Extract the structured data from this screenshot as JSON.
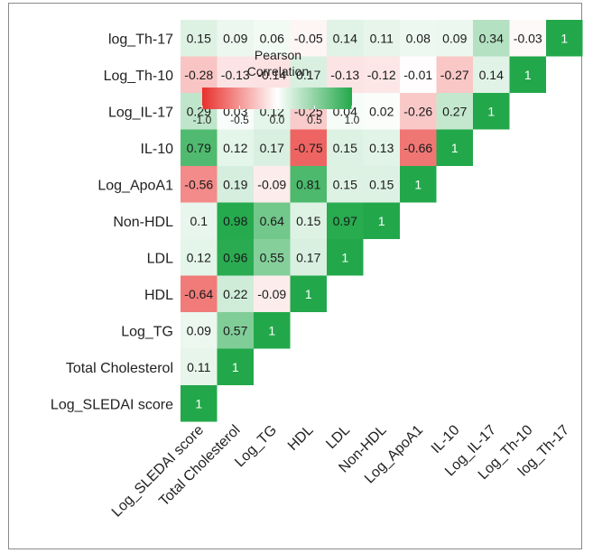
{
  "chart_data": {
    "type": "heatmap",
    "variables": [
      "Log_SLEDAI score",
      "Total Cholesterol",
      "Log_TG",
      "HDL",
      "LDL",
      "Non-HDL",
      "Log_ApoA1",
      "IL-10",
      "Log_IL-17",
      "Log_Th-10",
      "log_Th-17"
    ],
    "row_labels": [
      "log_Th-17",
      "Log_Th-10",
      "Log_IL-17",
      "IL-10",
      "Log_ApoA1",
      "Non-HDL",
      "LDL",
      "HDL",
      "Log_TG",
      "Total Cholesterol",
      "Log_SLEDAI score"
    ],
    "matrix": [
      [
        1,
        0.11,
        0.09,
        -0.64,
        0.12,
        0.1,
        -0.56,
        0.79,
        0.29,
        -0.28,
        0.15
      ],
      [
        0.11,
        1,
        0.57,
        0.22,
        0.96,
        0.98,
        0.19,
        0.12,
        0.03,
        -0.13,
        0.09
      ],
      [
        0.09,
        0.57,
        1,
        -0.09,
        0.55,
        0.64,
        -0.09,
        0.17,
        0.12,
        -0.14,
        0.06
      ],
      [
        -0.64,
        0.22,
        -0.09,
        1,
        0.17,
        0.15,
        0.81,
        -0.75,
        -0.25,
        0.17,
        -0.05
      ],
      [
        0.12,
        0.96,
        0.55,
        0.17,
        1,
        0.97,
        0.15,
        0.15,
        0.04,
        -0.13,
        0.14
      ],
      [
        0.1,
        0.98,
        0.64,
        0.15,
        0.97,
        1,
        0.15,
        0.13,
        0.02,
        -0.12,
        0.11
      ],
      [
        -0.56,
        0.19,
        -0.09,
        0.81,
        0.15,
        0.15,
        1,
        -0.66,
        -0.26,
        -0.01,
        0.08
      ],
      [
        0.79,
        0.12,
        0.17,
        -0.75,
        0.15,
        0.13,
        -0.66,
        1,
        0.27,
        -0.27,
        0.09
      ],
      [
        0.29,
        0.03,
        0.12,
        -0.25,
        0.04,
        0.02,
        -0.26,
        0.27,
        1,
        0.14,
        0.34
      ],
      [
        -0.28,
        -0.13,
        -0.14,
        0.17,
        -0.13,
        -0.12,
        -0.01,
        -0.27,
        0.14,
        1,
        -0.03
      ],
      [
        0.15,
        0.09,
        0.06,
        -0.05,
        0.14,
        0.11,
        0.08,
        0.09,
        0.34,
        -0.03,
        1
      ]
    ],
    "labels_text": [
      [
        "1",
        "0.11",
        "0.09",
        "-0.64",
        "0.12",
        "0.1",
        "-0.56",
        "0.79",
        "0.29",
        "-0.28",
        "0.15"
      ],
      [
        "0.11",
        "1",
        "0.57",
        "0.22",
        "0.96",
        "0.98",
        "0.19",
        "0.12",
        "0.03",
        "-0.13",
        "0.09"
      ],
      [
        "0.09",
        "0.57",
        "1",
        "-0.09",
        "0.55",
        "0.64",
        "-0.09",
        "0.17",
        "0.12",
        "-0.14",
        "0.06"
      ],
      [
        "-0.64",
        "0.22",
        "-0.09",
        "1",
        "0.17",
        "0.15",
        "0.81",
        "-0.75",
        "-0.25",
        "0.17",
        "-0.05"
      ],
      [
        "0.12",
        "0.96",
        "0.55",
        "0.17",
        "1",
        "0.97",
        "0.15",
        "0.15",
        "0.04",
        "-0.13",
        "0.14"
      ],
      [
        "0.1",
        "0.98",
        "0.64",
        "0.15",
        "0.97",
        "1",
        "0.15",
        "0.13",
        "0.02",
        "-0.12",
        "0.11"
      ],
      [
        "-0.56",
        "0.19",
        "-0.09",
        "0.81",
        "0.15",
        "0.15",
        "1",
        "-0.66",
        "-0.26",
        "-0.01",
        "0.08"
      ],
      [
        "0.79",
        "0.12",
        "0.17",
        "-0.75",
        "0.15",
        "0.13",
        "-0.66",
        "1",
        "0.27",
        "-0.27",
        "0.09"
      ],
      [
        "0.29",
        "0.03",
        "0.12",
        "-0.25",
        "0.04",
        "0.02",
        "-0.26",
        "0.27",
        "1",
        "0.14",
        "0.34"
      ],
      [
        "-0.28",
        "-0.13",
        "-0.14",
        "0.17",
        "-0.13",
        "-0.12",
        "-0.01",
        "-0.27",
        "0.14",
        "1",
        "-0.03"
      ],
      [
        "0.15",
        "0.09",
        "0.06",
        "-0.05",
        "0.14",
        "0.11",
        "0.08",
        "0.09",
        "0.34",
        "-0.03",
        "1"
      ]
    ],
    "triangle": "lower",
    "legend": {
      "title_line1": "Pearson",
      "title_line2": "Correlation",
      "ticks": [
        "-1.0",
        "-0.5",
        "0.0",
        "0.5",
        "1.0"
      ],
      "tick_values": [
        -1,
        -0.5,
        0,
        0.5,
        1
      ],
      "range": [
        -1,
        1
      ],
      "placement": "top-left"
    },
    "colors": {
      "negative": "#e8302d",
      "neutral": "#ffffff",
      "positive": "#22a84a"
    }
  }
}
